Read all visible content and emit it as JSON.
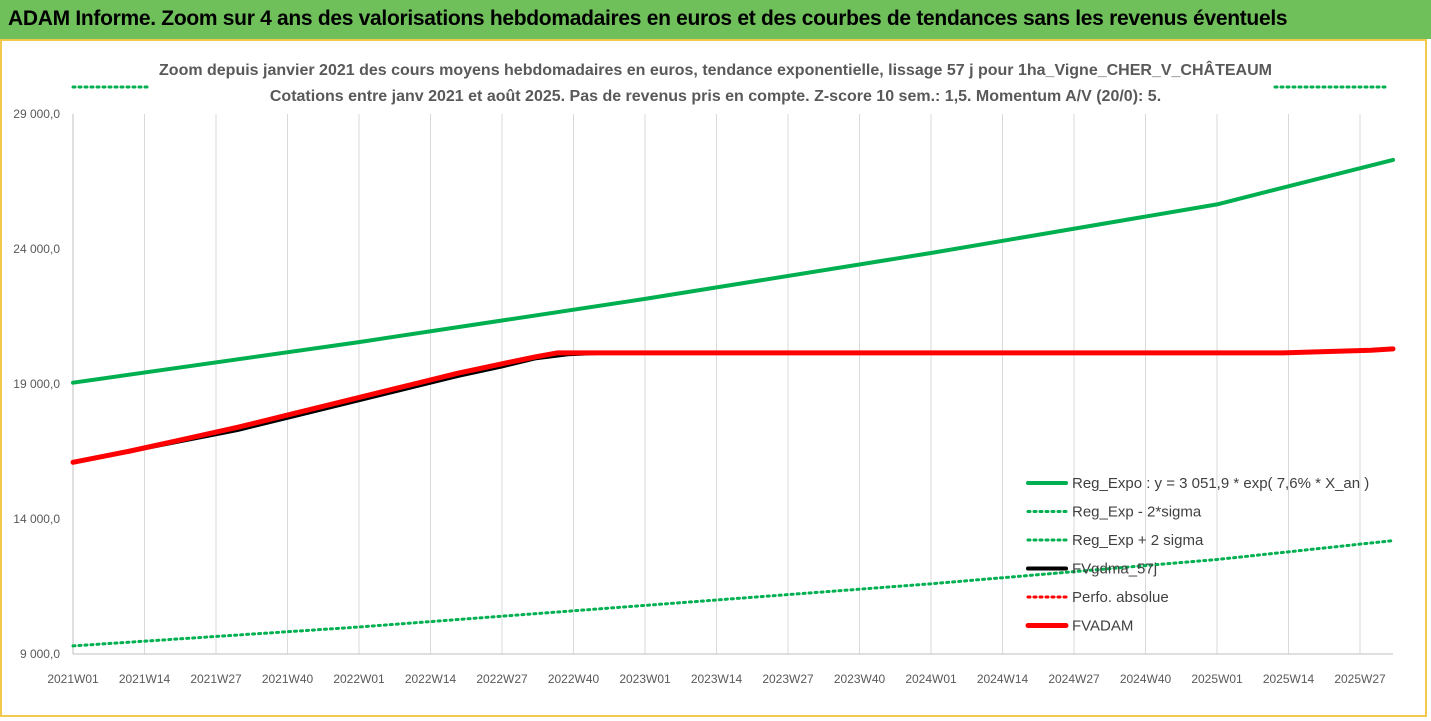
{
  "header": {
    "title": "ADAM Informe. Zoom sur 4 ans des valorisations hebdomadaires en euros et des courbes de tendances sans les revenus éventuels"
  },
  "chart_data": {
    "type": "line",
    "title_line1": "Zoom depuis janvier 2021 des cours moyens hebdomadaires en euros, tendance exponentielle, lissage 57 j pour 1ha_Vigne_CHER_V_CHÂTEAUM",
    "title_line2": "Cotations entre janv 2021 et août 2025.  Pas de revenus pris en compte. Z-score 10 sem.: 1,5. Momentum A/V (20/0): 5.",
    "ylim": [
      9000,
      29000
    ],
    "y_ticks": [
      "9 000,0",
      "14 000,0",
      "19 000,0",
      "24 000,0",
      "29 000,0"
    ],
    "y_tick_values": [
      9000,
      14000,
      19000,
      24000,
      29000
    ],
    "x_ticks": [
      "2021W01",
      "2021W14",
      "2021W27",
      "2021W40",
      "2022W01",
      "2022W14",
      "2022W27",
      "2022W40",
      "2023W01",
      "2023W14",
      "2023W27",
      "2023W40",
      "2024W01",
      "2024W14",
      "2024W27",
      "2024W40",
      "2025W01",
      "2025W14",
      "2025W27"
    ],
    "x_range_weeks": [
      0,
      240
    ],
    "grid": "vertical",
    "legend_position": "right",
    "series": [
      {
        "name": "Reg_Expo : y = 3 051,9 * exp( 7,6% *  X_an )",
        "color": "#00b050",
        "style": "solid",
        "x": [
          0,
          52,
          104,
          156,
          208,
          240
        ],
        "values": [
          19050,
          20550,
          22150,
          23850,
          25650,
          27300
        ]
      },
      {
        "name": "Reg_Exp - 2*sigma",
        "color": "#00b050",
        "style": "dotted",
        "x": [
          0,
          52,
          104,
          156,
          208,
          240
        ],
        "values": [
          9300,
          10000,
          10800,
          11600,
          12500,
          13200
        ]
      },
      {
        "name": "Reg_Exp + 2 sigma",
        "color": "#00b050",
        "style": "dotted",
        "x": [
          0,
          52,
          104,
          156,
          208,
          240
        ],
        "values": [
          30000,
          30000,
          30000,
          30000,
          30000,
          30000
        ]
      },
      {
        "name": "FVgdma_57j",
        "color": "#000000",
        "style": "solid",
        "x": [
          0,
          10,
          20,
          30,
          40,
          50,
          60,
          70,
          78,
          84,
          90,
          96,
          102,
          110,
          120,
          140,
          160,
          180,
          200,
          220,
          236,
          240
        ],
        "values": [
          16100,
          16500,
          16900,
          17300,
          17800,
          18300,
          18800,
          19300,
          19650,
          19950,
          20100,
          20150,
          20150,
          20150,
          20150,
          20150,
          20150,
          20150,
          20150,
          20150,
          20250,
          20300
        ]
      },
      {
        "name": "Perfo. absolue",
        "color": "#ff0000",
        "style": "dotted",
        "x": [],
        "values": []
      },
      {
        "name": "FVADAM",
        "color": "#ff0000",
        "style": "solid",
        "x": [
          0,
          10,
          20,
          30,
          40,
          50,
          60,
          70,
          78,
          84,
          88,
          90,
          96,
          102,
          110,
          120,
          140,
          160,
          180,
          200,
          220,
          236,
          240
        ],
        "values": [
          16100,
          16500,
          16950,
          17400,
          17900,
          18400,
          18900,
          19400,
          19750,
          20000,
          20150,
          20150,
          20150,
          20150,
          20150,
          20150,
          20150,
          20150,
          20150,
          20150,
          20150,
          20250,
          20300
        ]
      }
    ]
  }
}
